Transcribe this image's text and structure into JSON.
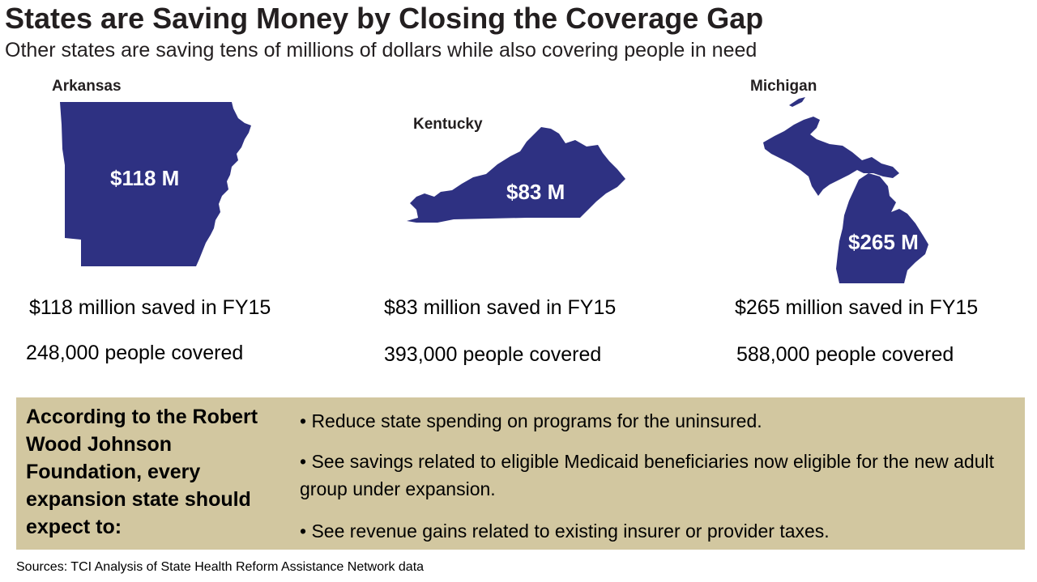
{
  "header": {
    "title": "States are Saving Money by Closing the Coverage Gap",
    "subtitle": "Other states are saving tens of millions of dollars while also covering people in need"
  },
  "colors": {
    "map_fill": "#2e3182",
    "panel_bg": "#d2c7a0",
    "map_label": "#ffffff"
  },
  "states": [
    {
      "name": "Arkansas",
      "map_label": "$118 M",
      "savings": "$118 million saved in FY15",
      "covered": "248,000 people covered"
    },
    {
      "name": "Kentucky",
      "map_label": "$83 M",
      "savings": "$83 million saved in FY15",
      "covered": "393,000 people covered"
    },
    {
      "name": "Michigan",
      "map_label": "$265 M",
      "savings": "$265 million saved in FY15",
      "covered": "588,000 people covered"
    }
  ],
  "panel": {
    "heading": "According to the Robert Wood Johnson Foundation, every expansion state should expect to:",
    "bullets": [
      "• Reduce state spending on programs for the uninsured.",
      "• See savings related to eligible Medicaid beneficiaries now eligible for the new adult group under expansion.",
      "• See revenue gains related to existing insurer or provider taxes."
    ]
  },
  "source": "Sources: TCI Analysis of State Health Reform Assistance Network data"
}
